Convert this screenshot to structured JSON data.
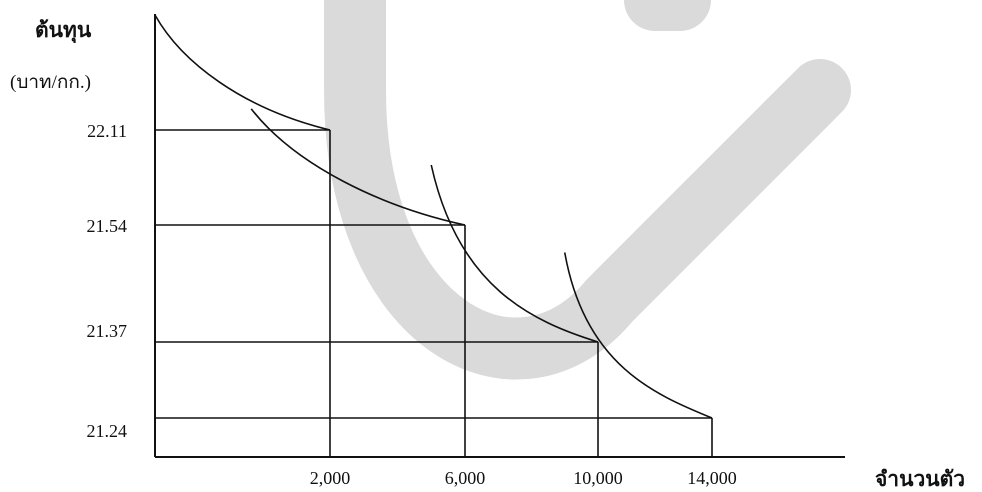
{
  "chart_data": {
    "type": "line",
    "title": "",
    "ylabel_lines": [
      "ต้นทุน",
      "(บาท/กก.)"
    ],
    "xlabel": "จำนวนตัว",
    "x_ticks": [
      "2,000",
      "6,000",
      "10,000",
      "14,000"
    ],
    "y_ticks": [
      "22.11",
      "21.54",
      "21.37",
      "21.24"
    ],
    "steps": [
      {
        "quantity": 2000,
        "cost": 22.11
      },
      {
        "quantity": 6000,
        "cost": 21.54
      },
      {
        "quantity": 10000,
        "cost": 21.37
      },
      {
        "quantity": 14000,
        "cost": 21.24
      }
    ],
    "series": [
      {
        "values": [
          [
            0,
            22.6
          ],
          [
            300,
            22.4
          ],
          [
            1000,
            22.2
          ],
          [
            2000,
            22.11
          ]
        ]
      },
      {
        "values": [
          [
            1100,
            22.2
          ],
          [
            1600,
            21.9
          ],
          [
            3500,
            21.65
          ],
          [
            6000,
            21.54
          ]
        ]
      },
      {
        "values": [
          [
            5000,
            21.9
          ],
          [
            5800,
            21.45
          ],
          [
            8000,
            21.4
          ],
          [
            10000,
            21.37
          ]
        ]
      },
      {
        "values": [
          [
            9000,
            21.5
          ],
          [
            9600,
            21.33
          ],
          [
            12000,
            21.28
          ],
          [
            14000,
            21.24
          ]
        ]
      }
    ],
    "grid": false,
    "stroke_color": "#111111",
    "watermark_color": "#d4d4d4"
  }
}
